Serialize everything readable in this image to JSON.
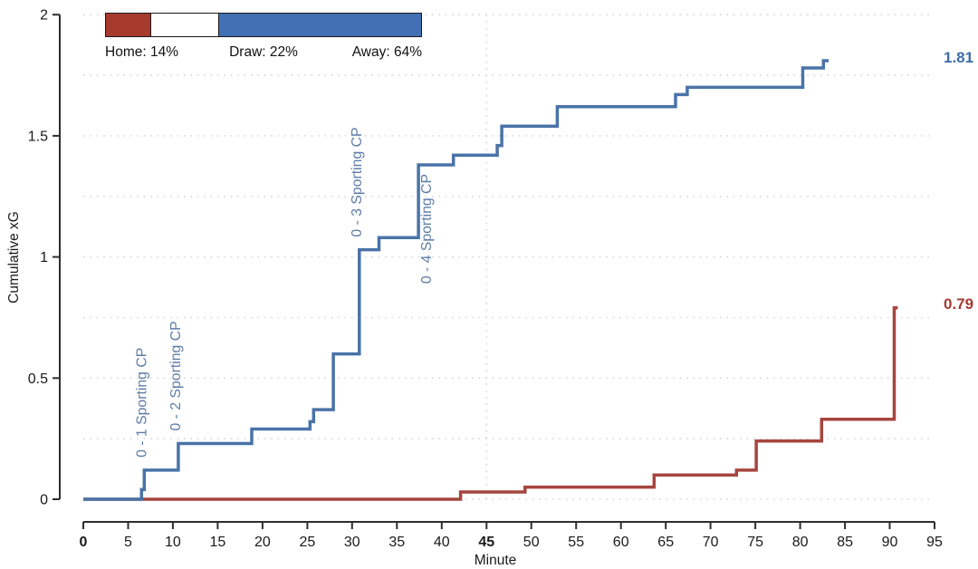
{
  "legend": {
    "home_label": "Home: 14%",
    "draw_label": "Draw: 22%",
    "away_label": "Away: 64%",
    "home_pct": 14,
    "draw_pct": 22,
    "away_pct": 64,
    "home_color": "#a63a2c",
    "draw_color": "#ffffff",
    "away_color": "#4170b4"
  },
  "chart_data": {
    "type": "line",
    "subtype": "step",
    "title": "",
    "xlabel": "Minute",
    "ylabel": "Cumulative xG",
    "xlim": [
      0,
      95
    ],
    "ylim": [
      0,
      2
    ],
    "x_ticks": [
      0,
      5,
      10,
      15,
      20,
      25,
      30,
      35,
      40,
      45,
      50,
      55,
      60,
      65,
      70,
      75,
      80,
      85,
      90,
      95
    ],
    "x_ticks_bold": [
      0,
      45
    ],
    "y_ticks": [
      "0",
      "0.5",
      "1",
      "1.5",
      "2"
    ],
    "y_tick_values": [
      0,
      0.5,
      1,
      1.5,
      2
    ],
    "grid": {
      "horizontal_every": 0.25,
      "vertical_at": [
        45
      ],
      "style": "dotted"
    },
    "series": [
      {
        "name": "home",
        "color": "#a6453e",
        "final_label": "0.79",
        "final_value": 0.79,
        "end_minute": 90.9,
        "steps": [
          [
            0,
            0
          ],
          [
            42.1,
            0.03
          ],
          [
            49.3,
            0.05
          ],
          [
            63.7,
            0.1
          ],
          [
            72.9,
            0.12
          ],
          [
            75.1,
            0.24
          ],
          [
            82.4,
            0.33
          ],
          [
            90.5,
            0.79
          ]
        ]
      },
      {
        "name": "away",
        "color": "#4a73a8",
        "final_label": "1.81",
        "final_value": 1.81,
        "end_minute": 83.2,
        "steps": [
          [
            0,
            0
          ],
          [
            6.5,
            0.04
          ],
          [
            6.8,
            0.12
          ],
          [
            10.6,
            0.23
          ],
          [
            18.8,
            0.29
          ],
          [
            25.3,
            0.32
          ],
          [
            25.7,
            0.37
          ],
          [
            27.9,
            0.6
          ],
          [
            30.8,
            1.03
          ],
          [
            33.0,
            1.08
          ],
          [
            37.4,
            1.38
          ],
          [
            41.3,
            1.42
          ],
          [
            46.2,
            1.46
          ],
          [
            46.7,
            1.54
          ],
          [
            52.9,
            1.62
          ],
          [
            66.1,
            1.67
          ],
          [
            67.4,
            1.7
          ],
          [
            80.3,
            1.78
          ],
          [
            82.6,
            1.81
          ]
        ]
      }
    ],
    "annotations": [
      {
        "minute": 6.8,
        "value": 0.12,
        "label": "0 - 1 Sporting CP",
        "placement": "above"
      },
      {
        "minute": 10.6,
        "value": 0.23,
        "label": "0 - 2 Sporting CP",
        "placement": "above"
      },
      {
        "minute": 30.8,
        "value": 1.03,
        "label": "0 - 3 Sporting CP",
        "placement": "above"
      },
      {
        "minute": 37.4,
        "value": 1.38,
        "label": "0 - 4 Sporting CP",
        "placement": "below"
      }
    ],
    "annotation_color": "#5d7ca7",
    "axis_color": "#2e2e2e",
    "grid_color": "#d8d8d8"
  }
}
